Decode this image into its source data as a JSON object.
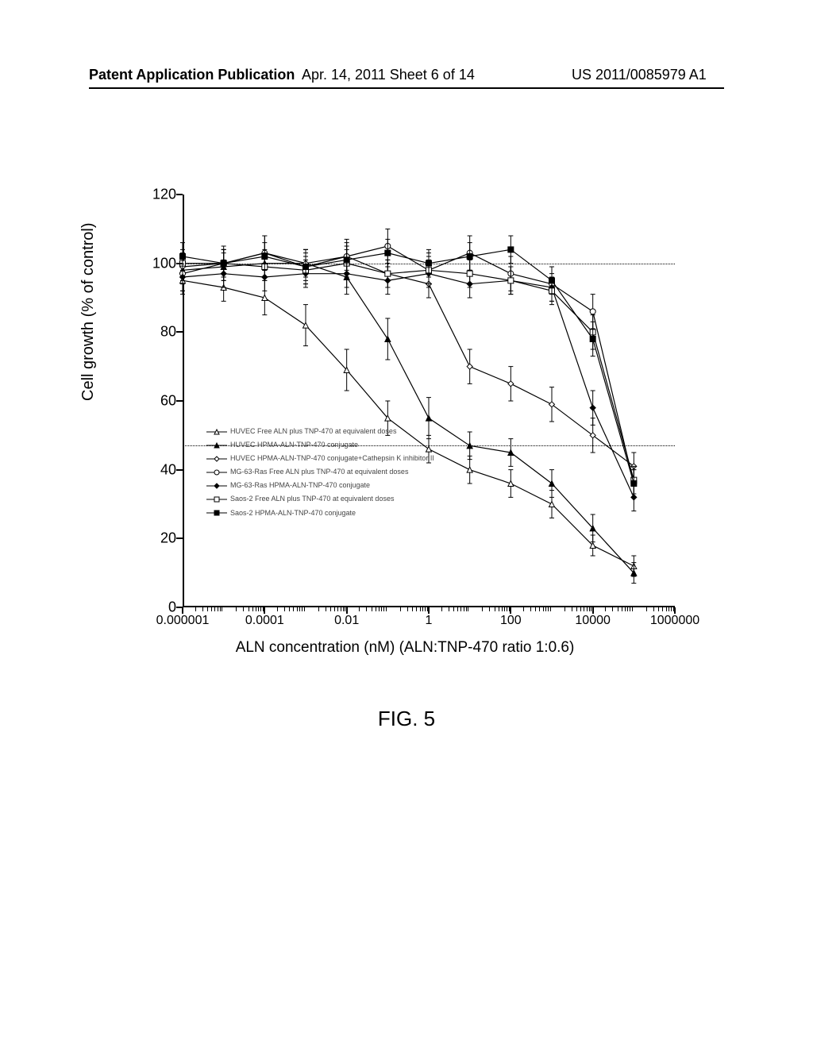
{
  "header": {
    "left": "Patent Application Publication",
    "mid": "Apr. 14, 2011  Sheet 6 of 14",
    "right": "US 2011/0085979 A1"
  },
  "figure_caption": "FIG. 5",
  "chart": {
    "type": "line",
    "y_title": "Cell growth (% of control)",
    "x_title": "ALN concentration (nM) (ALN:TNP-470 ratio 1:0.6)",
    "ylim": [
      0,
      120
    ],
    "ytick_step": 20,
    "xlim_log10": [
      -6,
      6
    ],
    "xtick_labels": [
      "0.000001",
      "0.0001",
      "0.01",
      "1",
      "100",
      "10000",
      "1000000"
    ],
    "xtick_log10": [
      -6,
      -4,
      -2,
      0,
      2,
      4,
      6
    ],
    "ref_lines_y": [
      100,
      47
    ],
    "background_color": "#ffffff",
    "axis_color": "#000000",
    "line_color": "#000000",
    "line_width": 1.2,
    "marker_size": 3.5,
    "error_cap": 3,
    "title_fontsize": 20,
    "label_fontsize": 18,
    "legend_fontsize": 9,
    "series": [
      {
        "id": "huvec-free",
        "label": "HUVEC Free ALN plus TNP-470 at equivalent doses",
        "marker": "triangle-open",
        "x_log10": [
          -6,
          -5,
          -4,
          -3,
          -2,
          -1,
          0,
          1,
          2,
          3,
          4,
          5
        ],
        "y": [
          95,
          93,
          90,
          82,
          69,
          55,
          46,
          40,
          36,
          30,
          18,
          12
        ],
        "err": [
          4,
          4,
          5,
          6,
          6,
          5,
          4,
          4,
          4,
          4,
          3,
          3
        ]
      },
      {
        "id": "huvec-conj",
        "label": "HUVEC HPMA-ALN-TNP-470 conjugate",
        "marker": "triangle-filled",
        "x_log10": [
          -6,
          -5,
          -4,
          -3,
          -2,
          -1,
          0,
          1,
          2,
          3,
          4,
          5
        ],
        "y": [
          98,
          99,
          100,
          100,
          96,
          78,
          55,
          47,
          45,
          36,
          23,
          10
        ],
        "err": [
          4,
          4,
          4,
          4,
          5,
          6,
          6,
          4,
          4,
          4,
          4,
          3
        ]
      },
      {
        "id": "huvec-conj-cathk",
        "label": "HUVEC HPMA-ALN-TNP-470 conjugate+Cathepsin K inhibitor II",
        "marker": "diamond-open",
        "x_log10": [
          -6,
          -5,
          -4,
          -3,
          -2,
          -1,
          0,
          1,
          2,
          3,
          4,
          5
        ],
        "y": [
          99,
          100,
          103,
          100,
          102,
          97,
          94,
          70,
          65,
          59,
          50,
          41
        ],
        "err": [
          4,
          4,
          5,
          4,
          4,
          4,
          4,
          5,
          5,
          5,
          5,
          4
        ]
      },
      {
        "id": "mg63-free",
        "label": "MG-63-Ras Free ALN plus TNP-470 at equivalent doses",
        "marker": "circle-open",
        "x_log10": [
          -6,
          -5,
          -4,
          -3,
          -2,
          -1,
          0,
          1,
          2,
          3,
          4,
          5
        ],
        "y": [
          97,
          100,
          103,
          99,
          102,
          105,
          98,
          103,
          97,
          94,
          86,
          36
        ],
        "err": [
          5,
          5,
          5,
          5,
          5,
          5,
          5,
          5,
          5,
          5,
          5,
          4
        ]
      },
      {
        "id": "mg63-conj",
        "label": "MG-63-Ras HPMA-ALN-TNP-470 conjugate",
        "marker": "diamond-filled",
        "x_log10": [
          -6,
          -5,
          -4,
          -3,
          -2,
          -1,
          0,
          1,
          2,
          3,
          4,
          5
        ],
        "y": [
          96,
          97,
          96,
          97,
          97,
          95,
          97,
          94,
          95,
          93,
          58,
          32
        ],
        "err": [
          4,
          4,
          4,
          4,
          4,
          4,
          4,
          4,
          4,
          4,
          5,
          4
        ]
      },
      {
        "id": "saos2-free",
        "label": "Saos-2 Free ALN plus TNP-470 at equivalent doses",
        "marker": "square-open",
        "x_log10": [
          -6,
          -5,
          -4,
          -3,
          -2,
          -1,
          0,
          1,
          2,
          3,
          4,
          5
        ],
        "y": [
          100,
          100,
          99,
          98,
          100,
          97,
          98,
          97,
          95,
          92,
          80,
          37
        ],
        "err": [
          4,
          4,
          4,
          4,
          4,
          4,
          4,
          4,
          4,
          4,
          5,
          4
        ]
      },
      {
        "id": "saos2-conj",
        "label": "Saos-2 HPMA-ALN-TNP-470 conjugate",
        "marker": "square-filled",
        "x_log10": [
          -6,
          -5,
          -4,
          -3,
          -2,
          -1,
          0,
          1,
          2,
          3,
          4,
          5
        ],
        "y": [
          102,
          100,
          102,
          99,
          101,
          103,
          100,
          102,
          104,
          95,
          78,
          36
        ],
        "err": [
          4,
          4,
          4,
          4,
          4,
          4,
          4,
          4,
          4,
          4,
          5,
          4
        ]
      }
    ]
  }
}
